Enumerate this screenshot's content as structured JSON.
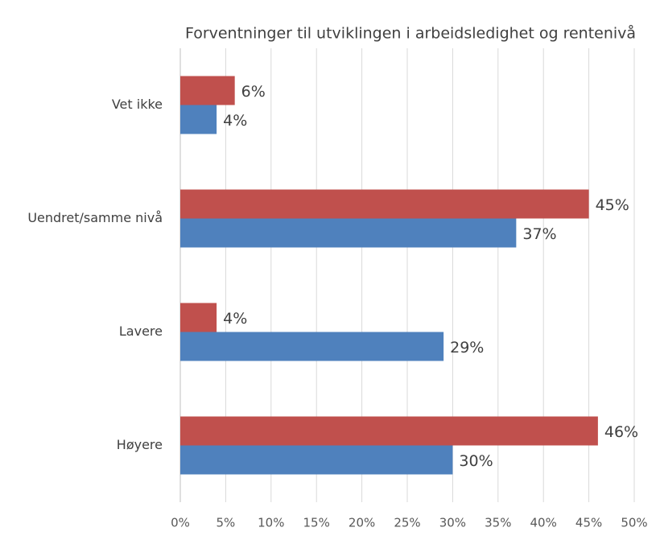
{
  "chart_data": {
    "type": "hbar",
    "title": "Forventninger til utviklingen i arbeidsledighet og rentenivå",
    "categories": [
      "Vet ikke",
      "Uendret/samme nivå",
      "Lavere",
      "Høyere"
    ],
    "series": [
      {
        "color": "#c0504d",
        "values": [
          6,
          45,
          4,
          46
        ],
        "value_labels": [
          "6%",
          "45%",
          "4%",
          "46%"
        ]
      },
      {
        "color": "#4f81bd",
        "values": [
          4,
          37,
          29,
          30
        ],
        "value_labels": [
          "4%",
          "37%",
          "29%",
          "30%"
        ]
      }
    ],
    "xlim": [
      0,
      50
    ],
    "xticks": [
      {
        "value": 0,
        "label": "0%"
      },
      {
        "value": 5,
        "label": "5%"
      },
      {
        "value": 10,
        "label": "10%"
      },
      {
        "value": 15,
        "label": "15%"
      },
      {
        "value": 20,
        "label": "20%"
      },
      {
        "value": 25,
        "label": "25%"
      },
      {
        "value": 30,
        "label": "30%"
      },
      {
        "value": 35,
        "label": "35%"
      },
      {
        "value": 40,
        "label": "40%"
      },
      {
        "value": 45,
        "label": "45%"
      },
      {
        "value": 50,
        "label": "50%"
      }
    ],
    "grid": true
  }
}
